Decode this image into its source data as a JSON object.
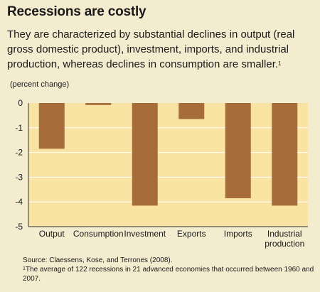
{
  "title": "Recessions are costly",
  "subtitle": "They are characterized by substantial declines in output (real gross domestic product), investment, imports, and industrial production, whereas declines in consumption are smaller.",
  "subtitle_footnote_mark": "1",
  "colors": {
    "page_background": "#f4eccf",
    "plot_background": "#f8e3a3",
    "bar": "#a66c3a",
    "grid": "#ffffff",
    "axis": "#333333"
  },
  "chart_data": {
    "type": "bar",
    "ylabel": "(percent change)",
    "categories": [
      "Output",
      "Consumption",
      "Investment",
      "Exports",
      "Imports",
      "Industrial production"
    ],
    "category_lines": [
      [
        "Output"
      ],
      [
        "Consumption"
      ],
      [
        "Investment"
      ],
      [
        "Exports"
      ],
      [
        "Imports"
      ],
      [
        "Industrial",
        "production"
      ]
    ],
    "values": [
      -1.85,
      -0.08,
      -4.15,
      -0.65,
      -3.85,
      -4.15
    ],
    "ylim": [
      -5,
      0
    ],
    "yticks": [
      0,
      -1,
      -2,
      -3,
      -4,
      -5
    ],
    "grid": true
  },
  "source": "Source: Claessens, Kose, and Terrones (2008).",
  "footnote_mark": "1",
  "footnote": "The average of 122 recessions in 21 advanced economies that occurred between 1960 and 2007."
}
